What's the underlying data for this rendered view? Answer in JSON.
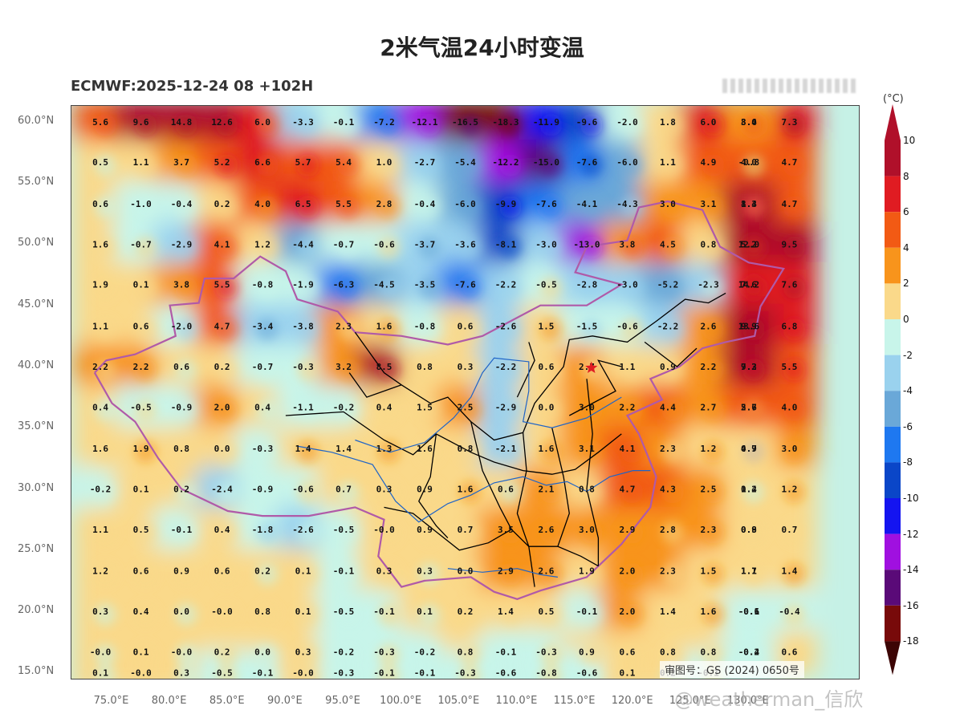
{
  "title": "2米气温24小时变温",
  "subtitle": "ECMWF:2025-12-24 08 +102H",
  "unit": "(°C)",
  "approval_number": "审图号：GS (2024) 0650号",
  "watermark": "@weatherman_信欣",
  "lat_labels": [
    "60.0°N",
    "55.0°N",
    "50.0°N",
    "45.0°N",
    "40.0°N",
    "35.0°N",
    "30.0°N",
    "25.0°N",
    "20.0°N",
    "15.0°N"
  ],
  "lon_labels": [
    "75.0°E",
    "80.0°E",
    "85.0°E",
    "90.0°E",
    "95.0°E",
    "100.0°E",
    "105.0°E",
    "110.0°E",
    "115.0°E",
    "120.0°E",
    "125.0°E",
    "130.0°E"
  ],
  "colorbar": {
    "labels": [
      "10",
      "8",
      "6",
      "4",
      "2",
      "0",
      "-2",
      "-4",
      "-6",
      "-8",
      "-10",
      "-12",
      "-14",
      "-16",
      "-18"
    ],
    "colors": [
      "#b0102a",
      "#e01c22",
      "#f25a14",
      "#f8941c",
      "#fad98a",
      "#c8f5ea",
      "#9ad2ee",
      "#6aa8d8",
      "#1e78f0",
      "#0a46c8",
      "#1414f0",
      "#a010e0",
      "#5a0a78",
      "#780a0a",
      "#3c0505"
    ]
  },
  "grid": {
    "lats": [
      60,
      57.5,
      55,
      52.5,
      50,
      47.5,
      45,
      42.5,
      40,
      37.5,
      35,
      32.5,
      30,
      27.5,
      25,
      22.5,
      20,
      17.5,
      15
    ],
    "lons": [
      74,
      77.5,
      81,
      84.5,
      88,
      91.5,
      95,
      98.5,
      102,
      105.5,
      109,
      112.5,
      116,
      119.5,
      123,
      126.5,
      130,
      133.5
    ],
    "values": [
      [
        "5.6",
        "9.6",
        "14.8",
        "12.6",
        "6.0",
        "-3.3",
        "-0.1",
        "-7.2",
        "-12.1",
        "-16.5",
        "-18.3",
        "-11.9",
        "-9.6",
        "-2.0",
        "1.8",
        "6.0",
        "6.9",
        "8.0"
      ],
      [
        "0.5",
        "1.1",
        "3.7",
        "5.2",
        "6.6",
        "5.7",
        "5.4",
        "1.0",
        "-2.7",
        "-5.4",
        "-12.2",
        "-15.0",
        "-7.6",
        "-6.0",
        "1.1",
        "4.9",
        "6.6",
        "-0.8"
      ],
      [
        "0.6",
        "-1.0",
        "-0.4",
        "0.2",
        "4.0",
        "6.5",
        "5.5",
        "2.8",
        "-0.4",
        "-6.0",
        "-9.9",
        "-7.6",
        "-4.1",
        "-4.3",
        "3.0",
        "3.1",
        "2.3",
        "1.3"
      ],
      [
        "1.6",
        "-0.7",
        "-2.9",
        "4.1",
        "1.2",
        "-4.4",
        "-0.7",
        "-0.6",
        "-3.7",
        "-3.6",
        "-8.1",
        "-3.0",
        "-13.0",
        "3.8",
        "4.5",
        "0.8",
        "-0.1",
        "5.2"
      ],
      [
        "1.9",
        "0.1",
        "3.8",
        "5.5",
        "-0.8",
        "-1.9",
        "-6.3",
        "-4.5",
        "-3.5",
        "-7.6",
        "-2.2",
        "-0.5",
        "-2.8",
        "-3.0",
        "-5.2",
        "-2.3",
        "7.4",
        "14.2"
      ],
      [
        "1.1",
        "0.6",
        "-2.0",
        "4.7",
        "-3.4",
        "-3.8",
        "2.3",
        "1.6",
        "-0.8",
        "0.6",
        "-2.6",
        "1.5",
        "-1.5",
        "-0.6",
        "-2.2",
        "2.6",
        "8.7",
        "9.9"
      ],
      [
        "2.2",
        "2.2",
        "0.6",
        "0.2",
        "-0.7",
        "-0.3",
        "3.2",
        "8.5",
        "0.8",
        "0.3",
        "-2.2",
        "0.6",
        "2.7",
        "1.1",
        "0.9",
        "2.2",
        "6.8",
        "7.2"
      ],
      [
        "0.4",
        "-0.5",
        "-0.9",
        "2.0",
        "0.4",
        "-1.1",
        "-0.2",
        "0.4",
        "1.5",
        "2.5",
        "-2.9",
        "0.0",
        "3.0",
        "2.2",
        "4.4",
        "2.7",
        "2.8",
        "2.6"
      ],
      [
        "1.6",
        "1.9",
        "0.8",
        "0.0",
        "-0.3",
        "1.4",
        "1.4",
        "1.3",
        "1.6",
        "0.8",
        "-2.1",
        "1.6",
        "3.1",
        "4.1",
        "2.3",
        "1.2",
        "4.6",
        "4.9"
      ],
      [
        "-0.2",
        "0.1",
        "0.2",
        "-2.4",
        "-0.9",
        "-0.6",
        "0.7",
        "0.3",
        "0.9",
        "1.6",
        "0.6",
        "2.1",
        "0.8",
        "4.7",
        "4.3",
        "2.5",
        "2.6",
        "1.4"
      ],
      [
        "1.1",
        "0.5",
        "-0.1",
        "0.4",
        "-1.8",
        "-2.6",
        "-0.5",
        "-0.0",
        "0.9",
        "0.7",
        "3.5",
        "2.6",
        "3.0",
        "2.9",
        "2.8",
        "2.3",
        "1.2",
        "0.9"
      ],
      [
        "1.2",
        "0.6",
        "0.9",
        "0.6",
        "0.2",
        "0.1",
        "-0.1",
        "0.3",
        "0.3",
        "0.0",
        "2.9",
        "2.6",
        "1.9",
        "2.0",
        "2.3",
        "1.5",
        "-0.7",
        "1.1"
      ],
      [
        "0.3",
        "0.4",
        "0.0",
        "-0.0",
        "0.8",
        "0.1",
        "-0.5",
        "-0.1",
        "0.1",
        "0.2",
        "1.4",
        "0.5",
        "-0.1",
        "2.0",
        "1.4",
        "1.6",
        "0.7",
        "-0.6"
      ],
      [
        "-0.0",
        "0.1",
        "-0.0",
        "0.2",
        "0.0",
        "0.3",
        "-0.2",
        "-0.3",
        "-0.2",
        "0.8",
        "-0.1",
        "-0.3",
        "0.9",
        "0.6",
        "0.8",
        "0.8",
        "0.0",
        "-0.2"
      ],
      [
        "0.1",
        "-0.0",
        "0.3",
        "-0.5",
        "-0.1",
        "-0.0",
        "-0.3",
        "-0.1",
        "-0.1",
        "-0.3",
        "-0.6",
        "-0.8",
        "-0.6",
        "0.1",
        "0.2",
        "-0.1",
        "0.0",
        "0.1"
      ],
      [
        "",
        "",
        "",
        "",
        "",
        "",
        "",
        "",
        "",
        "",
        "",
        "",
        "",
        "",
        "",
        "",
        "",
        ""
      ],
      [
        "",
        "",
        "",
        "",
        "",
        "",
        "",
        "",
        "",
        "",
        "",
        "",
        "",
        "",
        "",
        "",
        "",
        ""
      ],
      [
        "",
        "",
        "",
        "",
        "",
        "",
        "",
        "",
        "",
        "",
        "",
        "",
        "",
        "",
        "",
        "",
        "",
        ""
      ],
      [
        "",
        "",
        "",
        "",
        "",
        "",
        "",
        "",
        "",
        "",
        "",
        "",
        "",
        "",
        "",
        "",
        "",
        ""
      ]
    ]
  },
  "east_columns": {
    "lons": [
      130,
      133.5,
      137
    ],
    "rows": [
      [
        "8.0",
        "7.3",
        "3.4"
      ],
      [
        "-0.8",
        "4.7",
        "4.0"
      ],
      [
        "1.3",
        "4.7",
        "8.4"
      ],
      [
        "5.2",
        "9.5",
        "12.0"
      ],
      [
        "14.2",
        "7.6",
        "7.6"
      ],
      [
        "9.9",
        "6.8",
        "13.6"
      ],
      [
        "7.2",
        "5.5",
        "9.3"
      ],
      [
        "2.6",
        "4.0",
        "5.7"
      ],
      [
        "4.9",
        "3.0",
        "0.7"
      ],
      [
        "1.4",
        "1.2",
        "0.2"
      ],
      [
        "0.9",
        "0.7",
        "0.8"
      ],
      [
        "1.1",
        "1.4",
        "1.7"
      ],
      [
        "-0.6",
        "-0.4",
        "-0.1"
      ],
      [
        "-0.2",
        "0.6",
        "-0.4"
      ],
      [
        "",
        "",
        ""
      ]
    ]
  },
  "map_features": {
    "capital_marker": "red-star",
    "boundary_color": "#000000",
    "border_color": "#b05aa8",
    "river_color": "#1e64c8"
  }
}
